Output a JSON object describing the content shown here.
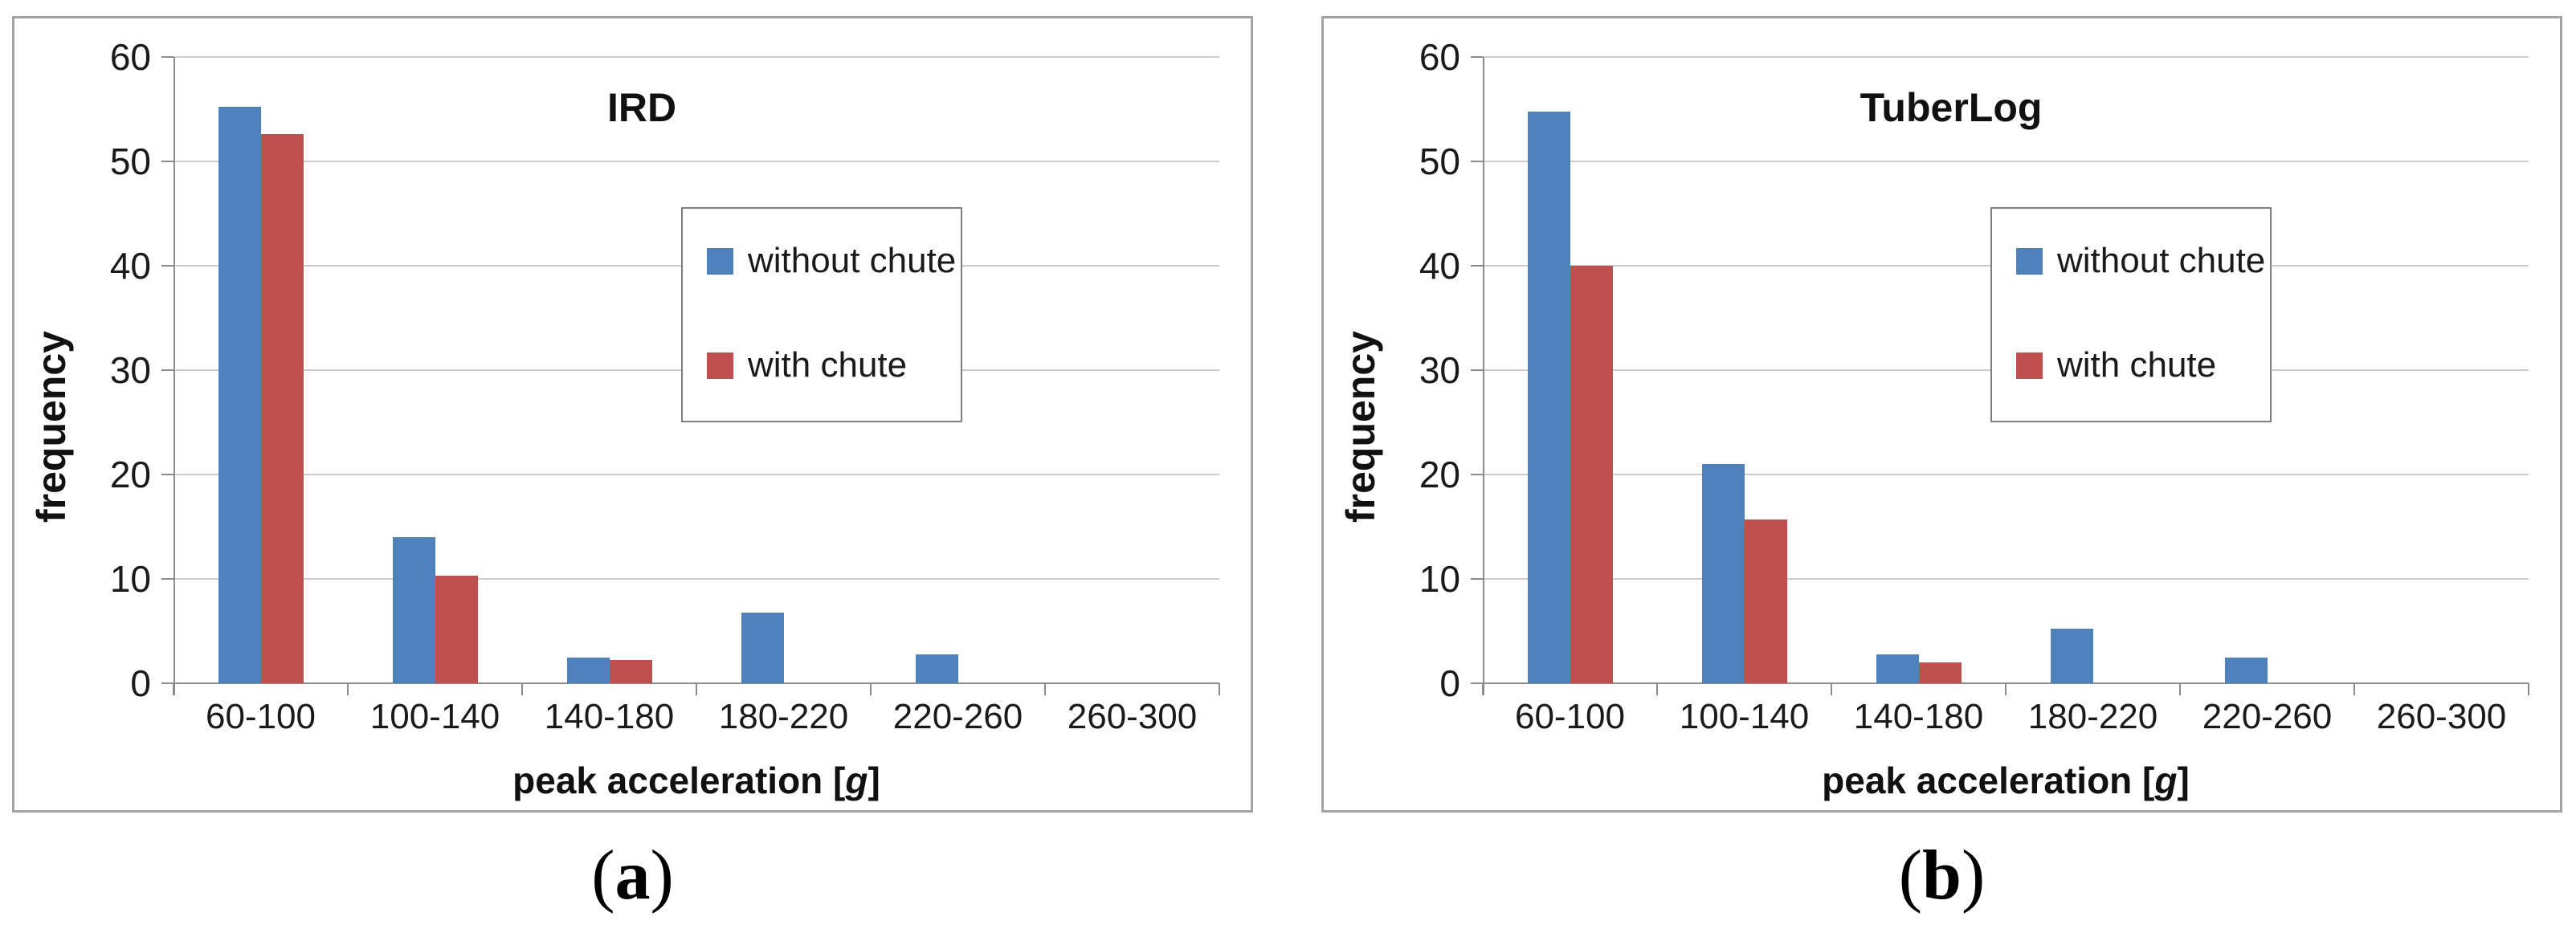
{
  "figure": {
    "caption_a": "(a)",
    "caption_b": "(b)",
    "series_colors": {
      "without_chute": "#4F81BD",
      "with_chute": "#C0504D"
    }
  },
  "chart_data": [
    {
      "type": "bar",
      "title": "IRD",
      "categories": [
        "60-100",
        "100-140",
        "140-180",
        "180-220",
        "220-260",
        "260-300"
      ],
      "series": [
        {
          "name": "without chute",
          "color": "#4F81BD",
          "values": [
            55.2,
            14.0,
            2.5,
            6.8,
            2.8,
            0
          ]
        },
        {
          "name": "with chute",
          "color": "#C0504D",
          "values": [
            52.6,
            10.3,
            2.2,
            0,
            0,
            0
          ]
        }
      ],
      "xlabel": "peak acceleration [g]",
      "xlabel_parts": {
        "pre": "peak acceleration [",
        "italic": "g",
        "post": "]"
      },
      "ylabel": "frequency",
      "ylim": [
        0,
        60
      ],
      "ytick_step": 10,
      "yticks": [
        0,
        10,
        20,
        30,
        40,
        50,
        60
      ],
      "grid": true,
      "legend_position": "upper-right-inside",
      "panel_label": "(a)"
    },
    {
      "type": "bar",
      "title": "TuberLog",
      "categories": [
        "60-100",
        "100-140",
        "140-180",
        "180-220",
        "220-260",
        "260-300"
      ],
      "series": [
        {
          "name": "without chute",
          "color": "#4F81BD",
          "values": [
            54.8,
            21.0,
            2.8,
            5.2,
            2.5,
            0
          ]
        },
        {
          "name": "with chute",
          "color": "#C0504D",
          "values": [
            40.0,
            15.7,
            2.0,
            0,
            0,
            0
          ]
        }
      ],
      "xlabel": "peak acceleration [g]",
      "xlabel_parts": {
        "pre": "peak acceleration [",
        "italic": "g",
        "post": "]"
      },
      "ylabel": "frequency",
      "ylim": [
        0,
        60
      ],
      "ytick_step": 10,
      "yticks": [
        0,
        10,
        20,
        30,
        40,
        50,
        60
      ],
      "grid": true,
      "legend_position": "upper-right-inside",
      "panel_label": "(b)"
    }
  ]
}
